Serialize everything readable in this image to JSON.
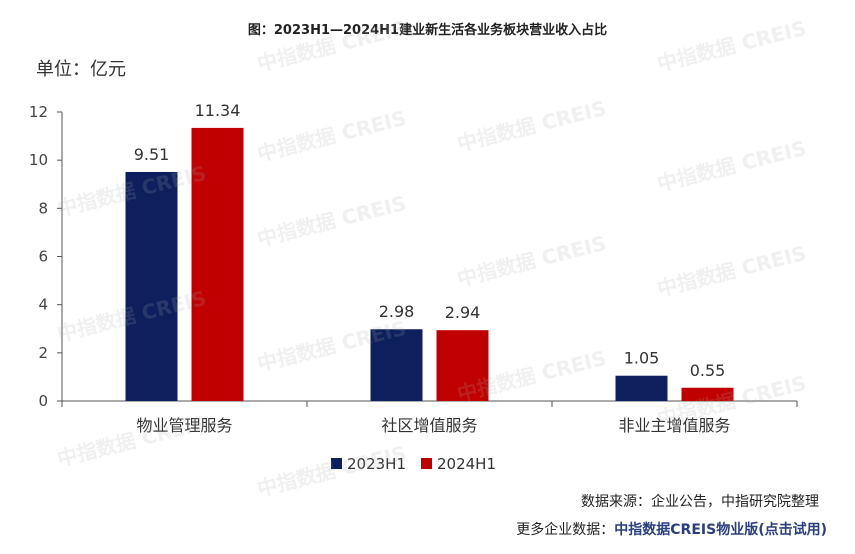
{
  "chart_data": {
    "type": "bar",
    "title": "图：2023H1—2024H1建业新生活各业务板块营业收入占比",
    "unit": "单位：亿元",
    "categories": [
      "物业管理服务",
      "社区增值服务",
      "非业主增值服务"
    ],
    "series": [
      {
        "name": "2023H1",
        "color": "#0d1f5c",
        "values": [
          9.51,
          2.98,
          1.05
        ]
      },
      {
        "name": "2024H1",
        "color": "#c00000",
        "values": [
          11.34,
          2.94,
          0.55
        ]
      }
    ],
    "ylim": [
      0,
      12
    ],
    "yticks": [
      0,
      2,
      4,
      6,
      8,
      10,
      12
    ],
    "grid": false,
    "legend": "bottom"
  },
  "watermark": "中指数据 CREIS",
  "footer": {
    "source": "数据来源：企业公告，中指研究院整理",
    "more_prefix": "更多企业数据：",
    "more_link": "中指数据CREIS物业版(点击试用)"
  }
}
